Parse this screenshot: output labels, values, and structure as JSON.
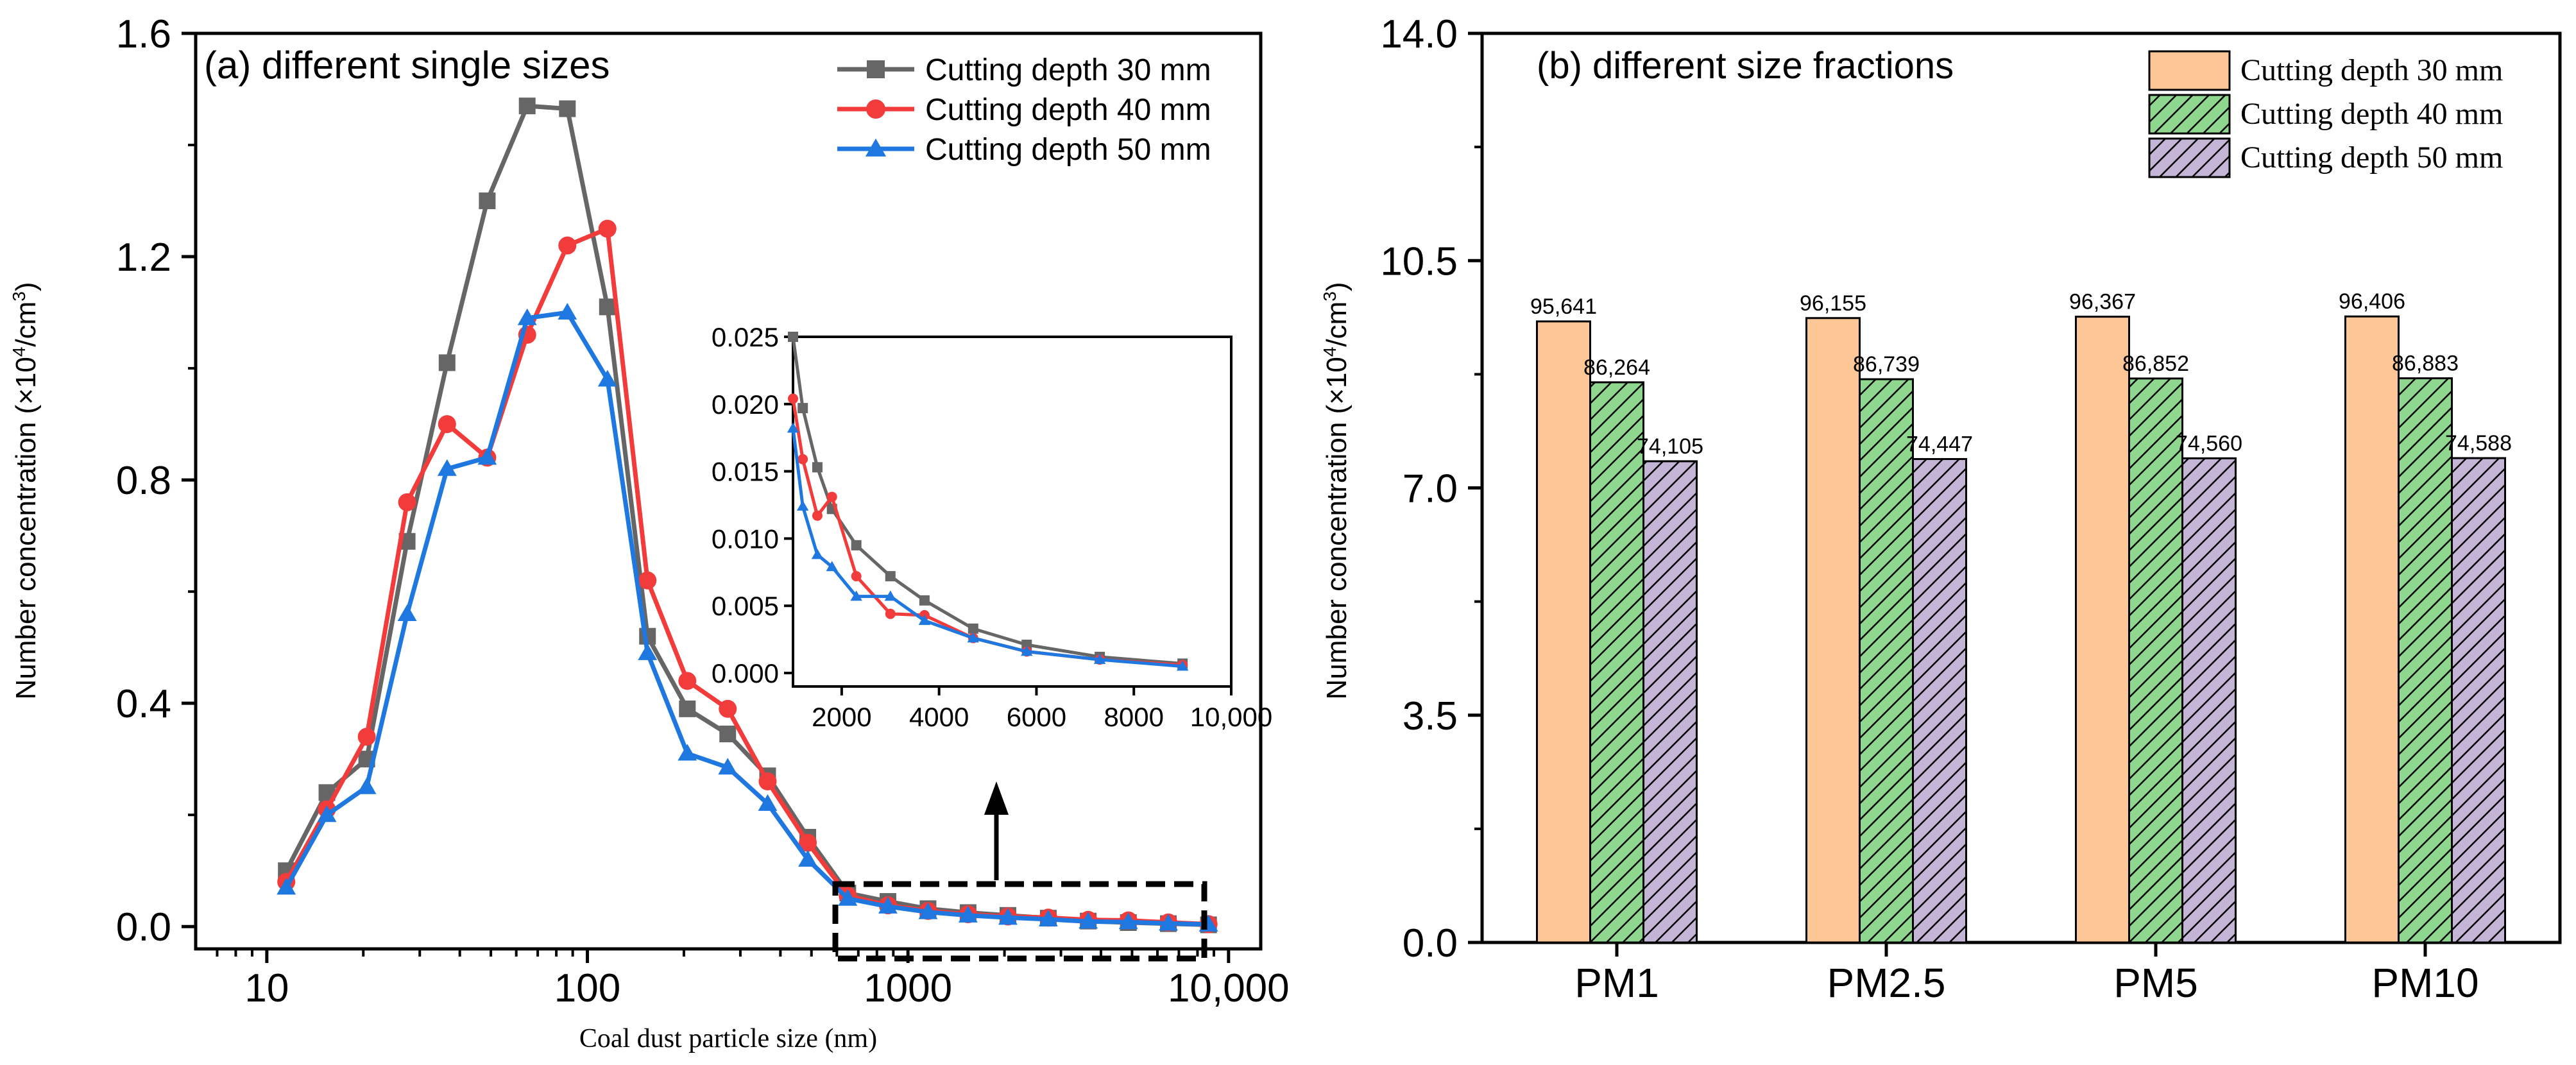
{
  "colors": {
    "s30": "#666666",
    "s40": "#f23c3c",
    "s50": "#1f77e0",
    "bar30": "#fdc696",
    "bar40": "#8fd78f",
    "bar50": "#c4b4d6",
    "axis": "#000000"
  },
  "chart_data": [
    {
      "type": "line",
      "title": "(a) different single sizes",
      "xlabel": "Coal dust particle size (nm)",
      "ylabel": "Number concentration (×10",
      "ylabel_sup": "4",
      "ylabel_tail": "/cm",
      "ylabel_sup2": "3",
      "ylabel_close": ")",
      "xscale": "log",
      "xlim": [
        6,
        12600
      ],
      "ylim": [
        -0.04,
        1.6
      ],
      "xticks": [
        10,
        100,
        1000,
        10000
      ],
      "xtick_labels": [
        "10",
        "100",
        "1000",
        "10,000"
      ],
      "yticks": [
        0.0,
        0.4,
        0.8,
        1.2,
        1.6
      ],
      "ytick_labels": [
        "0.0",
        "0.4",
        "0.8",
        "1.2",
        "1.6"
      ],
      "legend_position": "top-right",
      "x": [
        11.5,
        15.4,
        20.5,
        27.4,
        36.5,
        48.7,
        64.9,
        86.6,
        115.5,
        154,
        205,
        274,
        365,
        487,
        649,
        866,
        1155,
        1540,
        2050,
        2740,
        3650,
        4870,
        6490,
        8660
      ],
      "series": [
        {
          "name": "Cutting depth 30 mm",
          "marker": "square",
          "values": [
            0.1,
            0.24,
            0.3,
            0.69,
            1.01,
            1.3,
            1.47,
            1.465,
            1.11,
            0.52,
            0.39,
            0.345,
            0.27,
            0.16,
            0.06,
            0.045,
            0.032,
            0.025,
            0.02,
            0.015,
            0.0098,
            0.0071,
            0.0052,
            0.0031
          ]
        },
        {
          "name": "Cutting depth 40 mm",
          "marker": "circle",
          "values": [
            0.08,
            0.21,
            0.34,
            0.76,
            0.9,
            0.84,
            1.06,
            1.22,
            1.25,
            0.62,
            0.44,
            0.39,
            0.26,
            0.15,
            0.055,
            0.038,
            0.028,
            0.022,
            0.018,
            0.016,
            0.012,
            0.011,
            0.0074,
            0.0042
          ]
        },
        {
          "name": "Cutting depth 50 mm",
          "marker": "triangle",
          "values": [
            0.07,
            0.2,
            0.25,
            0.56,
            0.82,
            0.84,
            1.09,
            1.1,
            0.98,
            0.49,
            0.31,
            0.285,
            0.22,
            0.12,
            0.05,
            0.036,
            0.026,
            0.02,
            0.016,
            0.013,
            0.009,
            0.008,
            0.0055,
            0.0038
          ]
        }
      ],
      "inset": {
        "xlim": [
          1000,
          10000
        ],
        "ylim": [
          -0.001,
          0.025
        ],
        "xticks": [
          2000,
          4000,
          6000,
          8000,
          10000
        ],
        "xtick_labels": [
          "2000",
          "4000",
          "6000",
          "8000",
          "10,000"
        ],
        "yticks": [
          0.0,
          0.005,
          0.01,
          0.015,
          0.02,
          0.025
        ],
        "ytick_labels": [
          "0.000",
          "0.005",
          "0.010",
          "0.015",
          "0.020",
          "0.025"
        ],
        "x": [
          1000,
          1200,
          1500,
          1800,
          2300,
          3000,
          3700,
          4700,
          5800,
          7300,
          9000
        ],
        "series": [
          {
            "name": "Cutting depth 30 mm",
            "values": [
              0.025,
              0.0197,
              0.0153,
              0.0122,
              0.0095,
              0.0072,
              0.0054,
              0.0033,
              0.0021,
              0.0012,
              0.0007
            ]
          },
          {
            "name": "Cutting depth 40 mm",
            "values": [
              0.0204,
              0.0159,
              0.0117,
              0.0131,
              0.0072,
              0.0044,
              0.0043,
              0.0026,
              0.0016,
              0.001,
              0.0006
            ]
          },
          {
            "name": "Cutting depth 50 mm",
            "values": [
              0.0182,
              0.0124,
              0.0088,
              0.0079,
              0.0057,
              0.0057,
              0.0039,
              0.0026,
              0.0016,
              0.001,
              0.0005
            ]
          }
        ]
      }
    },
    {
      "type": "bar",
      "title": "(b) different size fractions",
      "xlabel": "",
      "ylabel": "Number concentration (×10",
      "ylabel_sup": "4",
      "ylabel_tail": "/cm",
      "ylabel_sup2": "3",
      "ylabel_close": ")",
      "ylim": [
        0,
        14
      ],
      "yticks": [
        0,
        3.5,
        7,
        10.5,
        14
      ],
      "ytick_labels": [
        "0.0",
        "3.5",
        "7.0",
        "10.5",
        "14.0"
      ],
      "categories": [
        "PM1",
        "PM2.5",
        "PM5",
        "PM10"
      ],
      "legend_position": "top-right",
      "series": [
        {
          "name": "Cutting depth 30 mm",
          "values": [
            9.5641,
            9.6155,
            9.6367,
            9.6406
          ],
          "labels": [
            "95,641",
            "96,155",
            "96,367",
            "96,406"
          ]
        },
        {
          "name": "Cutting depth 40 mm",
          "values": [
            8.6264,
            8.6739,
            8.6852,
            8.6883
          ],
          "labels": [
            "86,264",
            "86,739",
            "86,852",
            "86,883"
          ]
        },
        {
          "name": "Cutting depth 50 mm",
          "values": [
            7.4105,
            7.4447,
            7.456,
            7.4588
          ],
          "labels": [
            "74,105",
            "74,447",
            "74,560",
            "74,588"
          ]
        }
      ]
    }
  ]
}
